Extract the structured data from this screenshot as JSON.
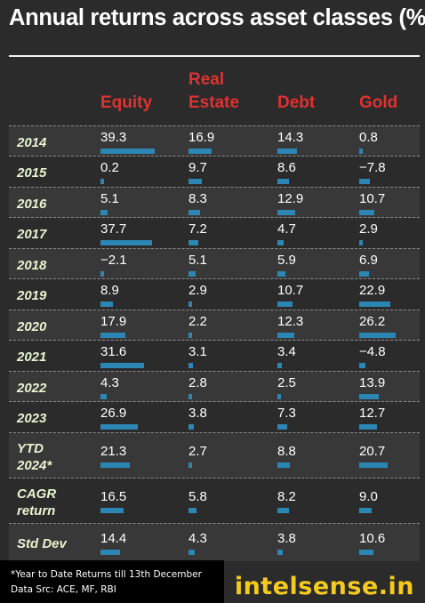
{
  "title": "Annual returns across asset classes (%)",
  "chart_data": {
    "type": "table",
    "title": "Annual returns across asset classes (%)",
    "columns": [
      {
        "lines": [
          "Equity"
        ]
      },
      {
        "lines": [
          "Real",
          "Estate"
        ]
      },
      {
        "lines": [
          "Debt"
        ]
      },
      {
        "lines": [
          "Gold"
        ]
      }
    ],
    "rows": [
      {
        "lines": [
          "2014"
        ],
        "values": [
          "39.3",
          "16.9",
          "14.3",
          "0.8"
        ]
      },
      {
        "lines": [
          "2015"
        ],
        "values": [
          "0.2",
          "9.7",
          "8.6",
          "−7.8"
        ]
      },
      {
        "lines": [
          "2016"
        ],
        "values": [
          "5.1",
          "8.3",
          "12.9",
          "10.7"
        ]
      },
      {
        "lines": [
          "2017"
        ],
        "values": [
          "37.7",
          "7.2",
          "4.7",
          "2.9"
        ]
      },
      {
        "lines": [
          "2018"
        ],
        "values": [
          "−2.1",
          "5.1",
          "5.9",
          "6.9"
        ]
      },
      {
        "lines": [
          "2019"
        ],
        "values": [
          "8.9",
          "2.9",
          "10.7",
          "22.9"
        ]
      },
      {
        "lines": [
          "2020"
        ],
        "values": [
          "17.9",
          "2.2",
          "12.3",
          "26.2"
        ]
      },
      {
        "lines": [
          "2021"
        ],
        "values": [
          "31.6",
          "3.1",
          "3.4",
          "−4.8"
        ]
      },
      {
        "lines": [
          "2022"
        ],
        "values": [
          "4.3",
          "2.8",
          "2.5",
          "13.9"
        ]
      },
      {
        "lines": [
          "2023"
        ],
        "values": [
          "26.9",
          "3.8",
          "7.3",
          "12.7"
        ]
      },
      {
        "lines": [
          "YTD",
          "2024*"
        ],
        "values": [
          "21.3",
          "2.7",
          "8.8",
          "20.7"
        ]
      },
      {
        "lines": [
          "CAGR",
          "return"
        ],
        "values": [
          "16.5",
          "5.8",
          "8.2",
          "9.0"
        ]
      },
      {
        "lines": [
          "Std Dev"
        ],
        "values": [
          "14.4",
          "4.3",
          "3.8",
          "10.6"
        ]
      }
    ]
  },
  "footnotes": [
    "*Year to Date Returns till 13th December",
    "Data Src: ACE, MF, RBI"
  ],
  "brand": "intelsense.in",
  "colors": {
    "background": "#2b2b2b",
    "header_text": "#e03131",
    "row_label_text": "#e8f5d0",
    "bar": "#2c86b3",
    "brand": "#f5ca1c"
  }
}
